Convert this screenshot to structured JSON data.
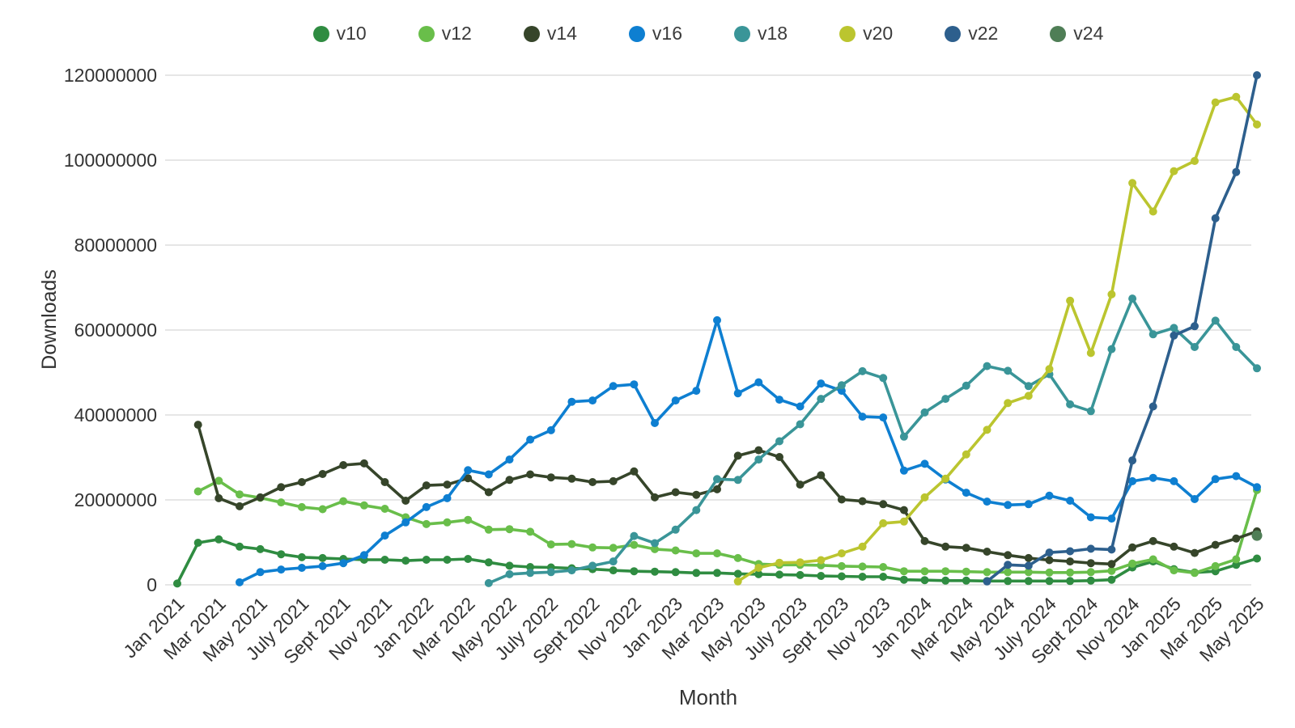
{
  "figure": {
    "x_axis_title": "Month",
    "y_axis_title": "Downloads",
    "background_color": "#ffffff",
    "grid_color": "#d8d8d8",
    "text_color": "#333333"
  },
  "chart_data": {
    "type": "line",
    "title": "",
    "xlabel": "Month",
    "ylabel": "Downloads",
    "ylim": [
      0,
      120000000
    ],
    "y_ticks": [
      0,
      20000000,
      40000000,
      60000000,
      80000000,
      100000000,
      120000000
    ],
    "y_tick_labels": [
      "0",
      "20000000",
      "40000000",
      "60000000",
      "80000000",
      "100000000",
      "120000000"
    ],
    "grid": "horizontal",
    "legend_position": "top",
    "x": [
      "Jan 2021",
      "Feb 2021",
      "Mar 2021",
      "Apr 2021",
      "May 2021",
      "Jun 2021",
      "Jul 2021",
      "Aug 2021",
      "Sep 2021",
      "Oct 2021",
      "Nov 2021",
      "Dec 2021",
      "Jan 2022",
      "Feb 2022",
      "Mar 2022",
      "Apr 2022",
      "May 2022",
      "Jun 2022",
      "Jul 2022",
      "Aug 2022",
      "Sep 2022",
      "Oct 2022",
      "Nov 2022",
      "Dec 2022",
      "Jan 2023",
      "Feb 2023",
      "Mar 2023",
      "Apr 2023",
      "May 2023",
      "Jun 2023",
      "Jul 2023",
      "Aug 2023",
      "Sep 2023",
      "Oct 2023",
      "Nov 2023",
      "Dec 2023",
      "Jan 2024",
      "Feb 2024",
      "Mar 2024",
      "Apr 2024",
      "May 2024",
      "Jun 2024",
      "Jul 2024",
      "Aug 2024",
      "Sep 2024",
      "Oct 2024",
      "Nov 2024",
      "Dec 2024",
      "Jan 2025",
      "Feb 2025",
      "Mar 2025",
      "Apr 2025",
      "May 2025"
    ],
    "x_tick_every": 2,
    "x_tick_labels": [
      "Jan 2021",
      "Mar 2021",
      "May 2021",
      "July 2021",
      "Sept 2021",
      "Nov 2021",
      "Jan 2022",
      "Mar 2022",
      "May 2022",
      "July 2022",
      "Sept 2022",
      "Nov 2022",
      "Jan 2023",
      "Mar 2023",
      "May 2023",
      "July 2023",
      "Sept 2023",
      "Nov 2023",
      "Jan 2024",
      "Mar 2024",
      "May 2024",
      "July 2024",
      "Sept 2024",
      "Nov 2024",
      "Jan 2025",
      "Mar 2025",
      "May 2025"
    ],
    "series": [
      {
        "name": "v10",
        "color": "#2f8c41",
        "values": [
          300000,
          9900000,
          10700000,
          9000000,
          8400000,
          7200000,
          6500000,
          6300000,
          6100000,
          5900000,
          5900000,
          5700000,
          5900000,
          5900000,
          6100000,
          5300000,
          4500000,
          4200000,
          4100000,
          3900000,
          3700000,
          3400000,
          3200000,
          3100000,
          3000000,
          2800000,
          2800000,
          2600000,
          2500000,
          2400000,
          2300000,
          2100000,
          2000000,
          1900000,
          1900000,
          1200000,
          1100000,
          1000000,
          1000000,
          900000,
          900000,
          900000,
          900000,
          900000,
          1000000,
          1200000,
          4100000,
          5500000,
          3700000,
          2900000,
          3200000,
          4700000,
          6200000
        ]
      },
      {
        "name": "v12",
        "color": "#69be4a",
        "values": [
          null,
          22000000,
          24500000,
          21300000,
          20500000,
          19400000,
          18300000,
          17800000,
          19700000,
          18700000,
          17900000,
          15900000,
          14300000,
          14700000,
          15300000,
          13000000,
          13100000,
          12500000,
          9500000,
          9600000,
          8800000,
          8700000,
          9400000,
          8400000,
          8100000,
          7400000,
          7400000,
          6300000,
          4900000,
          4700000,
          4700000,
          4600000,
          4400000,
          4300000,
          4200000,
          3200000,
          3200000,
          3200000,
          3100000,
          3000000,
          3000000,
          3000000,
          2900000,
          2900000,
          3000000,
          3300000,
          5000000,
          6000000,
          3400000,
          2800000,
          4400000,
          6000000,
          22300000
        ]
      },
      {
        "name": "v14",
        "color": "#36452a",
        "values": [
          null,
          37700000,
          20400000,
          18500000,
          20600000,
          23000000,
          24200000,
          26100000,
          28200000,
          28600000,
          24200000,
          19800000,
          23400000,
          23600000,
          25100000,
          21800000,
          24700000,
          26000000,
          25300000,
          25000000,
          24200000,
          24400000,
          26700000,
          20600000,
          21800000,
          21200000,
          22500000,
          30400000,
          31700000,
          30100000,
          23600000,
          25800000,
          20100000,
          19700000,
          19000000,
          17600000,
          10300000,
          9000000,
          8700000,
          7800000,
          7000000,
          6300000,
          5800000,
          5500000,
          5100000,
          4900000,
          8800000,
          10300000,
          9000000,
          7500000,
          9400000,
          10900000,
          12600000
        ]
      },
      {
        "name": "v16",
        "color": "#0e7fd1",
        "values": [
          null,
          null,
          null,
          600000,
          3000000,
          3600000,
          4000000,
          4400000,
          5100000,
          7000000,
          11600000,
          14700000,
          18300000,
          20400000,
          27000000,
          26000000,
          29500000,
          34200000,
          36400000,
          43100000,
          43400000,
          46800000,
          47200000,
          38100000,
          43400000,
          45700000,
          62300000,
          45100000,
          47700000,
          43600000,
          42000000,
          47400000,
          45700000,
          39600000,
          39400000,
          26900000,
          28500000,
          24800000,
          21700000,
          19600000,
          18800000,
          19000000,
          21000000,
          19800000,
          15900000,
          15600000,
          24400000,
          25200000,
          24400000,
          20200000,
          24900000,
          25600000,
          23000000
        ]
      },
      {
        "name": "v18",
        "color": "#3a9598",
        "values": [
          null,
          null,
          null,
          null,
          null,
          null,
          null,
          null,
          null,
          null,
          null,
          null,
          null,
          null,
          null,
          400000,
          2500000,
          2800000,
          3000000,
          3400000,
          4500000,
          5500000,
          11500000,
          9800000,
          13000000,
          17600000,
          24900000,
          24700000,
          29500000,
          33800000,
          37800000,
          43800000,
          47000000,
          50300000,
          48700000,
          34900000,
          40600000,
          43800000,
          46900000,
          51500000,
          50400000,
          46800000,
          49600000,
          42500000,
          40900000,
          55500000,
          67400000,
          59000000,
          60500000,
          56000000,
          62200000,
          56000000,
          51000000
        ]
      },
      {
        "name": "v20",
        "color": "#bbc52f",
        "values": [
          null,
          null,
          null,
          null,
          null,
          null,
          null,
          null,
          null,
          null,
          null,
          null,
          null,
          null,
          null,
          null,
          null,
          null,
          null,
          null,
          null,
          null,
          null,
          null,
          null,
          null,
          null,
          800000,
          4000000,
          5200000,
          5300000,
          5800000,
          7400000,
          9000000,
          14500000,
          14900000,
          20600000,
          25000000,
          30700000,
          36500000,
          42800000,
          44500000,
          50800000,
          66900000,
          54600000,
          68400000,
          94600000,
          87900000,
          97400000,
          99800000,
          113600000,
          114900000,
          108400000
        ]
      },
      {
        "name": "v22",
        "color": "#2d5f8d",
        "values": [
          null,
          null,
          null,
          null,
          null,
          null,
          null,
          null,
          null,
          null,
          null,
          null,
          null,
          null,
          null,
          null,
          null,
          null,
          null,
          null,
          null,
          null,
          null,
          null,
          null,
          null,
          null,
          null,
          null,
          null,
          null,
          null,
          null,
          null,
          null,
          null,
          null,
          null,
          null,
          800000,
          4700000,
          4500000,
          7600000,
          7900000,
          8500000,
          8300000,
          29300000,
          42000000,
          58700000,
          60900000,
          86300000,
          97200000,
          120000000
        ]
      },
      {
        "name": "v24",
        "color": "#4f7e56",
        "values": [
          null,
          null,
          null,
          null,
          null,
          null,
          null,
          null,
          null,
          null,
          null,
          null,
          null,
          null,
          null,
          null,
          null,
          null,
          null,
          null,
          null,
          null,
          null,
          null,
          null,
          null,
          null,
          null,
          null,
          null,
          null,
          null,
          null,
          null,
          null,
          null,
          null,
          null,
          null,
          null,
          null,
          null,
          null,
          null,
          null,
          null,
          null,
          null,
          null,
          null,
          null,
          null,
          11600000
        ]
      }
    ]
  }
}
